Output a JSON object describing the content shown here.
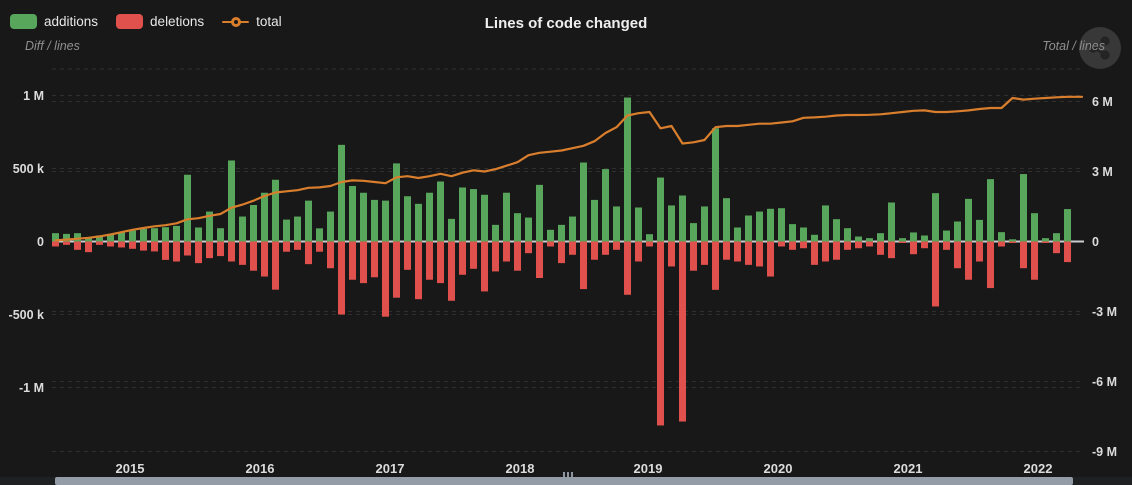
{
  "header": {
    "title": "Lines of code changed"
  },
  "chart_data": {
    "type": "bar+line",
    "title": "Lines of code changed",
    "granularity": "monthly",
    "legend": [
      "additions",
      "deletions",
      "total"
    ],
    "colors": {
      "additions": "#58a65c",
      "deletions": "#e0514e",
      "total": "#d97e2d",
      "zero_line": "#c9ccd0",
      "grid": "#2f2f2f",
      "axis_text": "#dcdcdc",
      "background": "#181818"
    },
    "left_axis": {
      "caption": "Diff / lines",
      "ticks": [
        "1 M",
        "500 k",
        "0",
        "-500 k",
        "-1 M"
      ],
      "tick_values_k": [
        1000,
        500,
        0,
        -500,
        -1000
      ]
    },
    "right_axis": {
      "caption": "Total / lines",
      "ticks": [
        "6 M",
        "3 M",
        "0",
        "-3 M",
        "-6 M",
        "-9 M"
      ],
      "tick_values_M": [
        6,
        3,
        0,
        -3,
        -6,
        -9
      ]
    },
    "x_axis": {
      "tick_labels": [
        "2015",
        "2016",
        "2017",
        "2018",
        "2019",
        "2020",
        "2021",
        "2022"
      ]
    },
    "series": [
      {
        "name": "additions",
        "type": "bar",
        "unit": "lines (thousands)",
        "values_k": [
          57,
          52,
          57,
          23,
          41,
          52,
          62,
          75,
          87,
          91,
          98,
          107,
          457,
          96,
          205,
          91,
          555,
          171,
          250,
          334,
          423,
          150,
          171,
          280,
          90,
          205,
          662,
          380,
          334,
          285,
          280,
          535,
          310,
          258,
          334,
          411,
          155,
          370,
          359,
          320,
          114,
          334,
          194,
          164,
          388,
          80,
          114,
          171,
          541,
          285,
          496,
          240,
          986,
          233,
          50,
          438,
          247,
          315,
          126,
          240,
          776,
          297,
          96,
          178,
          205,
          224,
          228,
          119,
          96,
          46,
          247,
          153,
          91,
          34,
          23,
          57,
          267,
          23,
          62,
          41,
          331,
          75,
          137,
          292,
          148,
          427,
          64,
          15,
          462,
          194,
          23,
          57,
          222
        ]
      },
      {
        "name": "deletions",
        "type": "bar",
        "unit": "lines (thousands, plotted negative)",
        "values_k": [
          34,
          23,
          57,
          73,
          23,
          34,
          41,
          50,
          62,
          68,
          126,
          137,
          96,
          148,
          114,
          100,
          137,
          160,
          200,
          240,
          330,
          70,
          57,
          155,
          70,
          183,
          500,
          262,
          285,
          245,
          515,
          385,
          194,
          395,
          262,
          285,
          406,
          228,
          187,
          342,
          205,
          137,
          200,
          80,
          250,
          34,
          148,
          91,
          326,
          125,
          91,
          57,
          365,
          137,
          34,
          1260,
          171,
          1233,
          200,
          160,
          331,
          125,
          137,
          160,
          171,
          240,
          34,
          57,
          46,
          160,
          137,
          125,
          57,
          46,
          34,
          91,
          114,
          10,
          87,
          46,
          445,
          57,
          183,
          262,
          137,
          319,
          34,
          10,
          183,
          262,
          8,
          80,
          141
        ]
      },
      {
        "name": "total",
        "type": "line",
        "axis": "right",
        "unit": "lines (millions)",
        "values_M": [
          0.05,
          0.08,
          0.12,
          0.16,
          0.22,
          0.3,
          0.4,
          0.5,
          0.58,
          0.65,
          0.7,
          0.78,
          0.95,
          1.0,
          1.1,
          1.18,
          1.45,
          1.58,
          1.75,
          1.95,
          2.1,
          2.15,
          2.2,
          2.3,
          2.32,
          2.38,
          2.55,
          2.62,
          2.6,
          2.55,
          2.5,
          2.75,
          2.8,
          2.72,
          2.8,
          2.9,
          2.8,
          2.95,
          3.05,
          3.0,
          3.1,
          3.25,
          3.4,
          3.7,
          3.8,
          3.85,
          3.9,
          4.0,
          4.1,
          4.3,
          4.65,
          4.9,
          5.4,
          5.5,
          5.55,
          4.85,
          4.95,
          4.2,
          4.25,
          4.35,
          4.9,
          4.95,
          4.95,
          5.0,
          5.05,
          5.05,
          5.1,
          5.15,
          5.3,
          5.32,
          5.35,
          5.4,
          5.42,
          5.42,
          5.43,
          5.45,
          5.5,
          5.55,
          5.6,
          5.62,
          5.55,
          5.55,
          5.58,
          5.62,
          5.68,
          5.72,
          5.72,
          6.15,
          6.08,
          6.12,
          6.15,
          6.18,
          6.2
        ]
      }
    ]
  },
  "scrollbar": {
    "present": "horizontal data zoom scrollbar at bottom"
  }
}
